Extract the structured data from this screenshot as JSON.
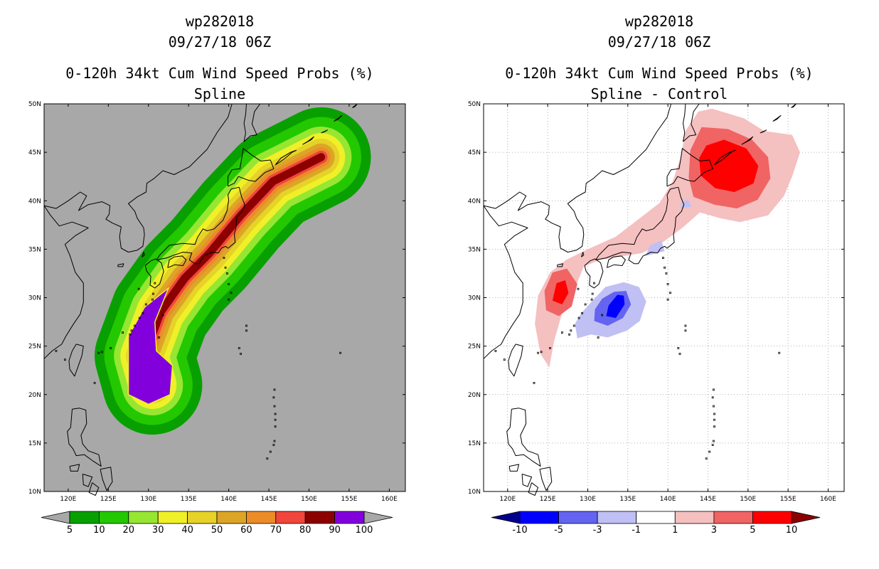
{
  "chart_data": [
    {
      "type": "heatmap",
      "panel": "left",
      "title_lines": [
        "wp282018",
        "09/27/18 06Z",
        "0-120h 34kt Cum Wind Speed Probs (%)",
        "Spline"
      ],
      "xlabel": "",
      "ylabel": "",
      "x_ticks": [
        "120E",
        "125E",
        "130E",
        "135E",
        "140E",
        "145E",
        "150E",
        "155E",
        "160E"
      ],
      "y_ticks": [
        "50N",
        "45N",
        "40N",
        "35N",
        "30N",
        "25N",
        "20N",
        "15N",
        "10N"
      ],
      "xlim": [
        117,
        162
      ],
      "ylim": [
        10,
        50
      ],
      "grid": false,
      "colorbar": {
        "labels": [
          "5",
          "10",
          "20",
          "30",
          "40",
          "50",
          "60",
          "70",
          "80",
          "90",
          "100"
        ],
        "colors": [
          "#08a000",
          "#23c800",
          "#96e632",
          "#f0f028",
          "#e6d228",
          "#dca528",
          "#eb8c28",
          "#f0463c",
          "#8c0000",
          "#8200dc"
        ],
        "under_color": "#a8a8a8",
        "over_color": "#a8a8a8"
      },
      "background_color": "#a8a8a8",
      "swath_centerline_lonlat": [
        [
          130.5,
          21
        ],
        [
          129.5,
          24
        ],
        [
          131.5,
          28.5
        ],
        [
          134.5,
          32
        ],
        [
          137.5,
          34.5
        ],
        [
          141.5,
          38.5
        ],
        [
          145.5,
          42
        ],
        [
          151.5,
          44.5
        ]
      ],
      "swath_halfwidth_deg_by_level": [
        6.2,
        5.0,
        3.8,
        3.0,
        2.3,
        1.7,
        1.2,
        0.8,
        0.5
      ],
      "peak_region_100pct_lonlat": [
        [
          127.5,
          20
        ],
        [
          130,
          19
        ],
        [
          132.7,
          20
        ],
        [
          133,
          23
        ],
        [
          131,
          24.5
        ],
        [
          130.8,
          27.5
        ],
        [
          132.5,
          31
        ],
        [
          129.5,
          29
        ],
        [
          127.5,
          26
        ]
      ]
    },
    {
      "type": "heatmap",
      "panel": "right",
      "title_lines": [
        "wp282018",
        "09/27/18 06Z",
        "0-120h 34kt Cum Wind Speed Probs (%)",
        "Spline - Control"
      ],
      "xlabel": "",
      "ylabel": "",
      "x_ticks": [
        "120E",
        "125E",
        "130E",
        "135E",
        "140E",
        "145E",
        "150E",
        "155E",
        "160E"
      ],
      "y_ticks": [
        "50N",
        "45N",
        "40N",
        "35N",
        "30N",
        "25N",
        "20N",
        "15N",
        "10N"
      ],
      "xlim": [
        117,
        162
      ],
      "ylim": [
        10,
        50
      ],
      "grid": true,
      "colorbar": {
        "labels": [
          "-10",
          "-5",
          "-3",
          "-1",
          "1",
          "3",
          "5",
          "10"
        ],
        "colors": [
          "#0000ff",
          "#6464f0",
          "#c0c0f5",
          "#ffffff",
          "#f5c0c0",
          "#f06464",
          "#ff0000"
        ],
        "under_color": "#00008c",
        "over_color": "#8c0000"
      },
      "background_color": "#ffffff",
      "anomalies": [
        {
          "sign": "positive",
          "center_lonlat": [
            147.5,
            43
          ],
          "peak": 5
        },
        {
          "sign": "positive",
          "center_lonlat": [
            126.5,
            30.5
          ],
          "peak": 5
        },
        {
          "sign": "positive",
          "center_lonlat": [
            136.5,
            37
          ],
          "peak": 1
        },
        {
          "sign": "negative",
          "center_lonlat": [
            133.5,
            28.8
          ],
          "peak": -5
        }
      ]
    }
  ]
}
